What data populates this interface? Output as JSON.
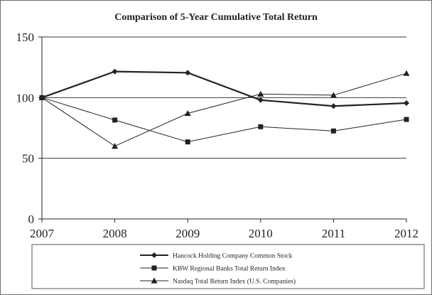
{
  "chart_data": {
    "type": "line",
    "title": "Comparison of 5-Year Cumulative Total Return",
    "x": [
      "2007",
      "2008",
      "2009",
      "2010",
      "2011",
      "2012"
    ],
    "ylim": [
      0,
      150
    ],
    "yticks": [
      0,
      50,
      100,
      150
    ],
    "grid": true,
    "legend_placement": "bottom",
    "series": [
      {
        "name": "Hancock Holding Company Common Stock",
        "marker": "diamond",
        "color": "#222222",
        "linewidth": "thick",
        "values": [
          100,
          121.5,
          120.5,
          98,
          93,
          95.5
        ]
      },
      {
        "name": "KBW Regional Banks Total Return Index",
        "marker": "square",
        "color": "#222222",
        "linewidth": "thin",
        "values": [
          100,
          81.5,
          63.5,
          76,
          72.5,
          82
        ]
      },
      {
        "name": "Nasdaq Total Return Index (U.S. Companies)",
        "marker": "triangle",
        "color": "#222222",
        "linewidth": "thin",
        "values": [
          100,
          60,
          87,
          103,
          102,
          120
        ]
      }
    ]
  }
}
